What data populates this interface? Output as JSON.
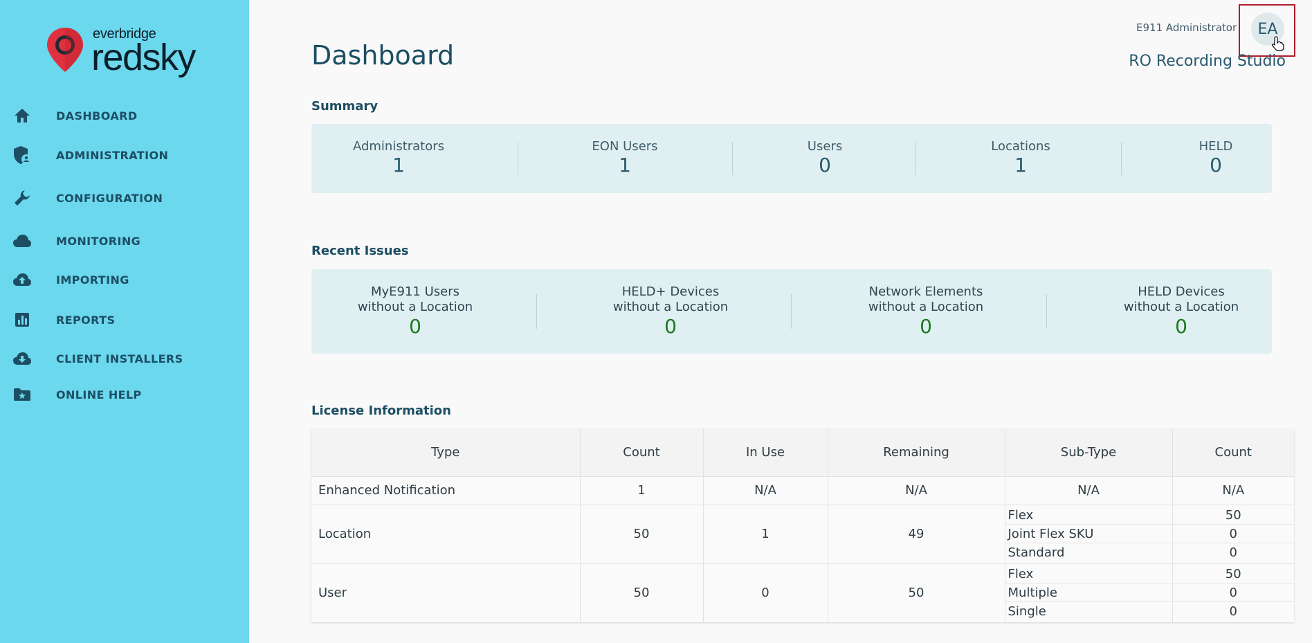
{
  "brand": {
    "small": "everbridge",
    "big": "redsky",
    "pin_color": "#e0313e"
  },
  "nav": [
    {
      "label": "DASHBOARD",
      "icon": "home-icon"
    },
    {
      "label": "ADMINISTRATION",
      "icon": "shield-user-icon"
    },
    {
      "label": "CONFIGURATION",
      "icon": "wrench-icon"
    },
    {
      "label": "MONITORING",
      "icon": "cloud-icon"
    },
    {
      "label": "IMPORTING",
      "icon": "cloud-upload-icon"
    },
    {
      "label": "REPORTS",
      "icon": "bar-chart-icon"
    },
    {
      "label": "CLIENT INSTALLERS",
      "icon": "cloud-download-icon"
    },
    {
      "label": "ONLINE HELP",
      "icon": "folder-star-icon"
    }
  ],
  "header": {
    "title": "Dashboard",
    "user_name": "E911 Administrator",
    "org_name": "RO Recording Studio",
    "avatar_initials": "EA"
  },
  "summary": {
    "title": "Summary",
    "stats": [
      {
        "label": "Administrators",
        "value": "1"
      },
      {
        "label": "EON Users",
        "value": "1"
      },
      {
        "label": "Users",
        "value": "0"
      },
      {
        "label": "Locations",
        "value": "1"
      },
      {
        "label": "HELD",
        "value": "0"
      }
    ]
  },
  "issues": {
    "title": "Recent Issues",
    "items": [
      {
        "line1": "MyE911 Users",
        "line2": "without a Location",
        "value": "0"
      },
      {
        "line1": "HELD+ Devices",
        "line2": "without a Location",
        "value": "0"
      },
      {
        "line1": "Network Elements",
        "line2": "without a Location",
        "value": "0"
      },
      {
        "line1": "HELD Devices",
        "line2": "without a Location",
        "value": "0"
      }
    ]
  },
  "license": {
    "title": "License Information",
    "headers": [
      "Type",
      "Count",
      "In Use",
      "Remaining",
      "Sub-Type",
      "Count"
    ],
    "rows": [
      {
        "type": "Enhanced Notification",
        "count": "1",
        "in_use": "N/A",
        "remaining": "N/A",
        "subtypes": [
          {
            "name": "N/A",
            "count": "N/A"
          }
        ]
      },
      {
        "type": "Location",
        "count": "50",
        "in_use": "1",
        "remaining": "49",
        "subtypes": [
          {
            "name": "Flex",
            "count": "50"
          },
          {
            "name": "Joint Flex SKU",
            "count": "0"
          },
          {
            "name": "Standard",
            "count": "0"
          }
        ]
      },
      {
        "type": "User",
        "count": "50",
        "in_use": "0",
        "remaining": "50",
        "subtypes": [
          {
            "name": "Flex",
            "count": "50"
          },
          {
            "name": "Multiple",
            "count": "0"
          },
          {
            "name": "Single",
            "count": "0"
          }
        ]
      }
    ]
  }
}
